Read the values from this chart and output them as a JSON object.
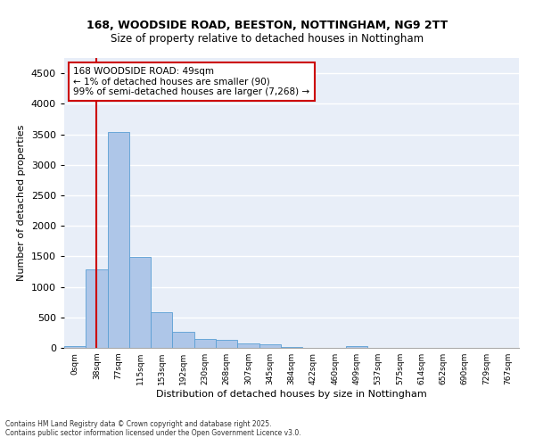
{
  "title_line1": "168, WOODSIDE ROAD, BEESTON, NOTTINGHAM, NG9 2TT",
  "title_line2": "Size of property relative to detached houses in Nottingham",
  "xlabel": "Distribution of detached houses by size in Nottingham",
  "ylabel": "Number of detached properties",
  "bar_labels": [
    "0sqm",
    "38sqm",
    "77sqm",
    "115sqm",
    "153sqm",
    "192sqm",
    "230sqm",
    "268sqm",
    "307sqm",
    "345sqm",
    "384sqm",
    "422sqm",
    "460sqm",
    "499sqm",
    "537sqm",
    "575sqm",
    "614sqm",
    "652sqm",
    "690sqm",
    "729sqm",
    "767sqm"
  ],
  "bar_values": [
    30,
    1290,
    3530,
    1490,
    590,
    265,
    145,
    130,
    75,
    55,
    10,
    0,
    0,
    30,
    0,
    0,
    0,
    0,
    0,
    0,
    0
  ],
  "bar_color": "#aec6e8",
  "bar_edge_color": "#5a9fd4",
  "ylim": [
    0,
    4750
  ],
  "yticks": [
    0,
    500,
    1000,
    1500,
    2000,
    2500,
    3000,
    3500,
    4000,
    4500
  ],
  "property_line_color": "#cc0000",
  "annotation_text": "168 WOODSIDE ROAD: 49sqm\n← 1% of detached houses are smaller (90)\n99% of semi-detached houses are larger (7,268) →",
  "annotation_box_color": "#cc0000",
  "footer_text": "Contains HM Land Registry data © Crown copyright and database right 2025.\nContains public sector information licensed under the Open Government Licence v3.0.",
  "bg_color": "#e8eef8",
  "grid_color": "#ffffff",
  "title_fontsize": 9,
  "subtitle_fontsize": 8.5,
  "ylabel_fontsize": 8,
  "xlabel_fontsize": 8,
  "ytick_fontsize": 8,
  "xtick_fontsize": 6.5,
  "footer_fontsize": 5.5,
  "annot_fontsize": 7.5
}
